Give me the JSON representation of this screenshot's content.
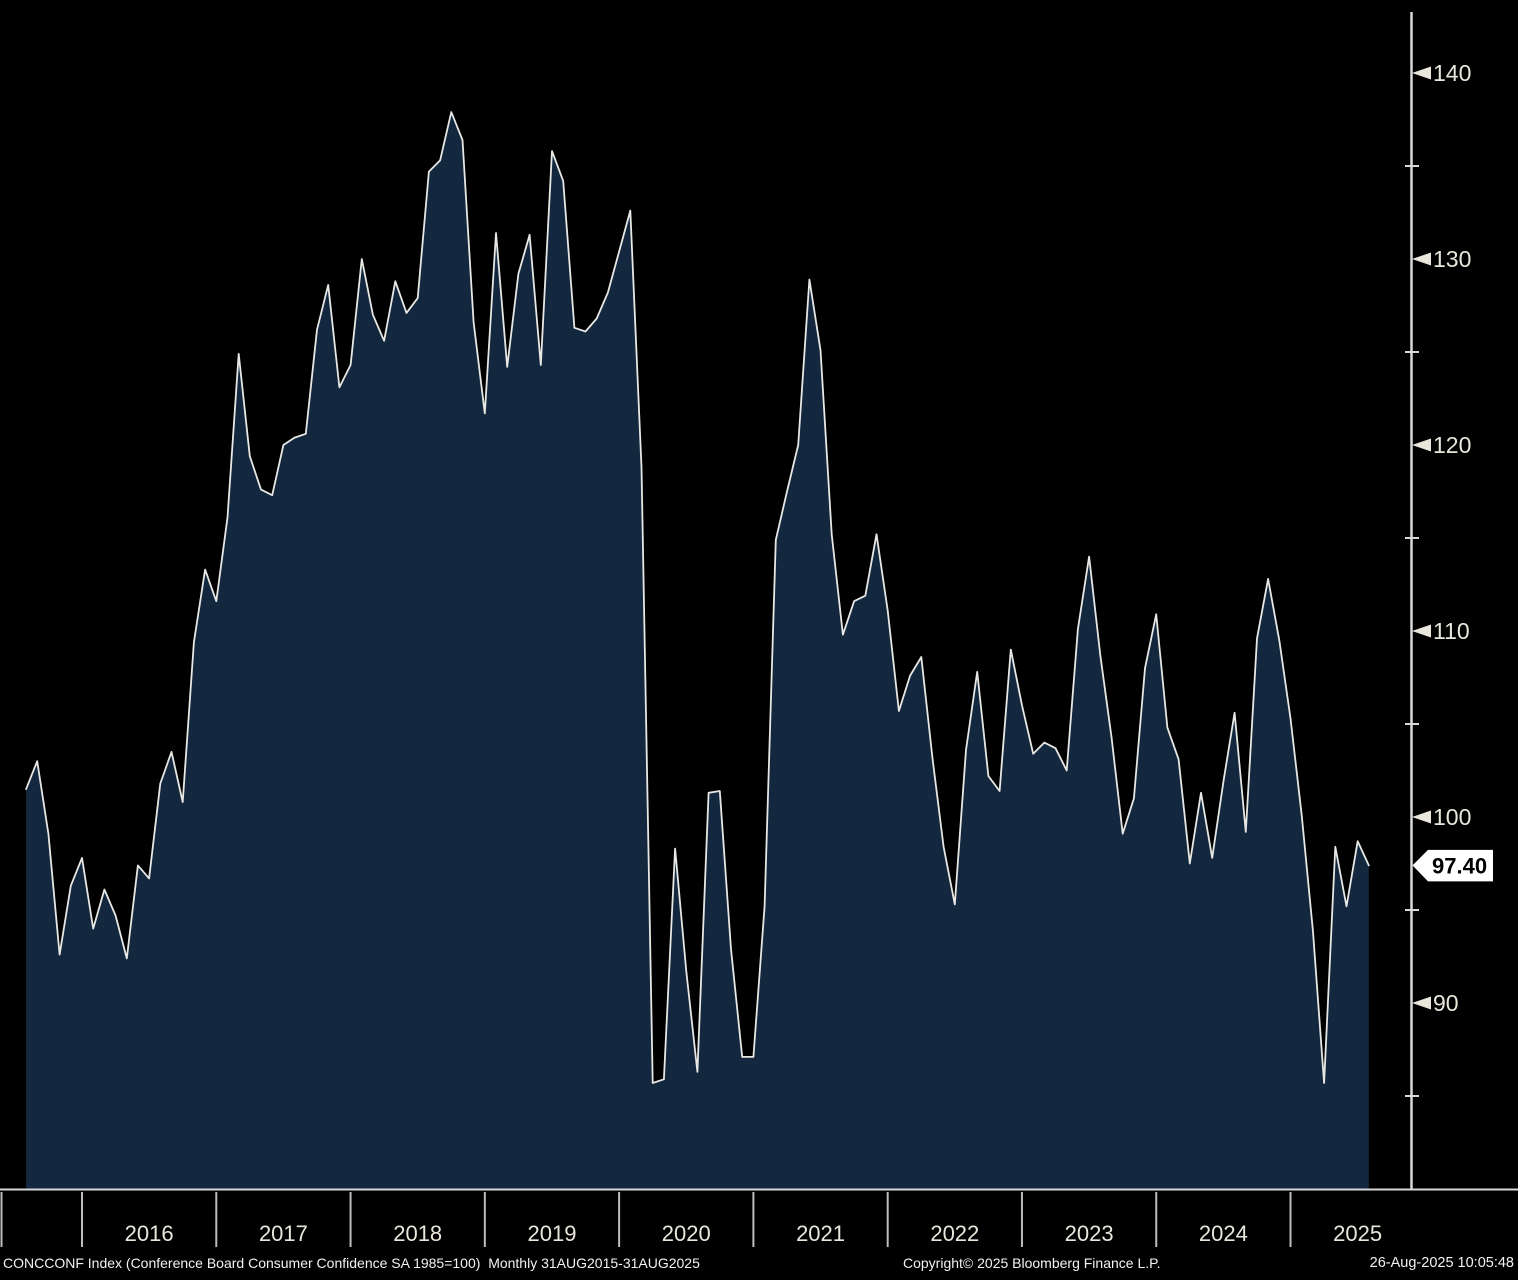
{
  "chart_data": {
    "type": "area",
    "title": "CONCCONF Index (Conference Board Consumer Confidence SA 1985=100)",
    "security_id": "CONCCONF Index",
    "security_name": "Conference Board Consumer Confidence SA 1985=100",
    "frequency": "Monthly",
    "period": "31AUG2015-31AUG2025",
    "x_start": "2015-08",
    "x_end": "2025-08",
    "series_order": [
      "2015",
      "2016",
      "2017",
      "2018",
      "2019",
      "2020",
      "2021",
      "2022",
      "2023",
      "2024",
      "2025"
    ],
    "series_by_year": {
      "2015": {
        "start_month": 8,
        "values": [
          101.5,
          103.0,
          99.1,
          92.6,
          96.3
        ]
      },
      "2016": {
        "start_month": 1,
        "values": [
          97.8,
          94.0,
          96.1,
          94.7,
          92.4,
          97.4,
          96.7,
          101.8,
          103.5,
          100.8,
          109.4,
          113.3
        ]
      },
      "2017": {
        "start_month": 1,
        "values": [
          111.6,
          116.1,
          124.9,
          119.4,
          117.6,
          117.3,
          120.0,
          120.4,
          120.6,
          126.2,
          128.6,
          123.1
        ]
      },
      "2018": {
        "start_month": 1,
        "values": [
          124.3,
          130.0,
          127.0,
          125.6,
          128.8,
          127.1,
          127.9,
          134.7,
          135.3,
          137.9,
          136.4,
          126.6
        ]
      },
      "2019": {
        "start_month": 1,
        "values": [
          121.7,
          131.4,
          124.2,
          129.2,
          131.3,
          124.3,
          135.8,
          134.2,
          126.3,
          126.1,
          126.8,
          128.2
        ]
      },
      "2020": {
        "start_month": 1,
        "values": [
          130.4,
          132.6,
          118.8,
          85.7,
          85.9,
          98.3,
          91.7,
          86.3,
          101.3,
          101.4,
          92.9,
          87.1
        ]
      },
      "2021": {
        "start_month": 1,
        "values": [
          87.1,
          95.2,
          114.9,
          117.5,
          120.0,
          128.9,
          125.1,
          115.2,
          109.8,
          111.6,
          111.9,
          115.2
        ]
      },
      "2022": {
        "start_month": 1,
        "values": [
          111.1,
          105.7,
          107.6,
          108.6,
          103.2,
          98.4,
          95.3,
          103.6,
          107.8,
          102.2,
          101.4,
          109.0
        ]
      },
      "2023": {
        "start_month": 1,
        "values": [
          106.0,
          103.4,
          104.0,
          103.7,
          102.5,
          110.1,
          114.0,
          108.7,
          104.3,
          99.1,
          101.0,
          108.0
        ]
      },
      "2024": {
        "start_month": 1,
        "values": [
          110.9,
          104.8,
          103.1,
          97.5,
          101.3,
          97.8,
          101.9,
          105.6,
          99.2,
          109.6,
          112.8,
          109.5
        ]
      },
      "2025": {
        "start_month": 1,
        "values": [
          105.3,
          100.1,
          93.9,
          85.7,
          98.4,
          95.2,
          98.7,
          97.4
        ]
      }
    },
    "last_value": 97.4,
    "last_value_label": "97.40",
    "x_tick_years": [
      "2016",
      "2017",
      "2018",
      "2019",
      "2020",
      "2021",
      "2022",
      "2023",
      "2024",
      "2025"
    ],
    "y_major_ticks": [
      140,
      130,
      120,
      110,
      100,
      90
    ],
    "y_minor_ticks": [
      135,
      125,
      115,
      105,
      95,
      85
    ],
    "ylim": [
      80,
      144
    ],
    "y_axis_side": "right",
    "grid": "off",
    "legend_position": "none",
    "colors": {
      "background": "#000000",
      "area_fill": "#13283f",
      "line": "#e7e7e3",
      "axis": "#d8d8d8",
      "separator": "#bdbdbd",
      "tick_label": "#e9e7dc",
      "last_value_bg": "#ffffff",
      "last_value_text": "#000000"
    }
  },
  "status_bar": {
    "left": "CONCCONF Index (Conference Board Consumer Confidence SA 1985=100)  Monthly 31AUG2015-31AUG2025",
    "center": "Copyright© 2025 Bloomberg Finance L.P.",
    "right": "26-Aug-2025 10:05:48"
  }
}
